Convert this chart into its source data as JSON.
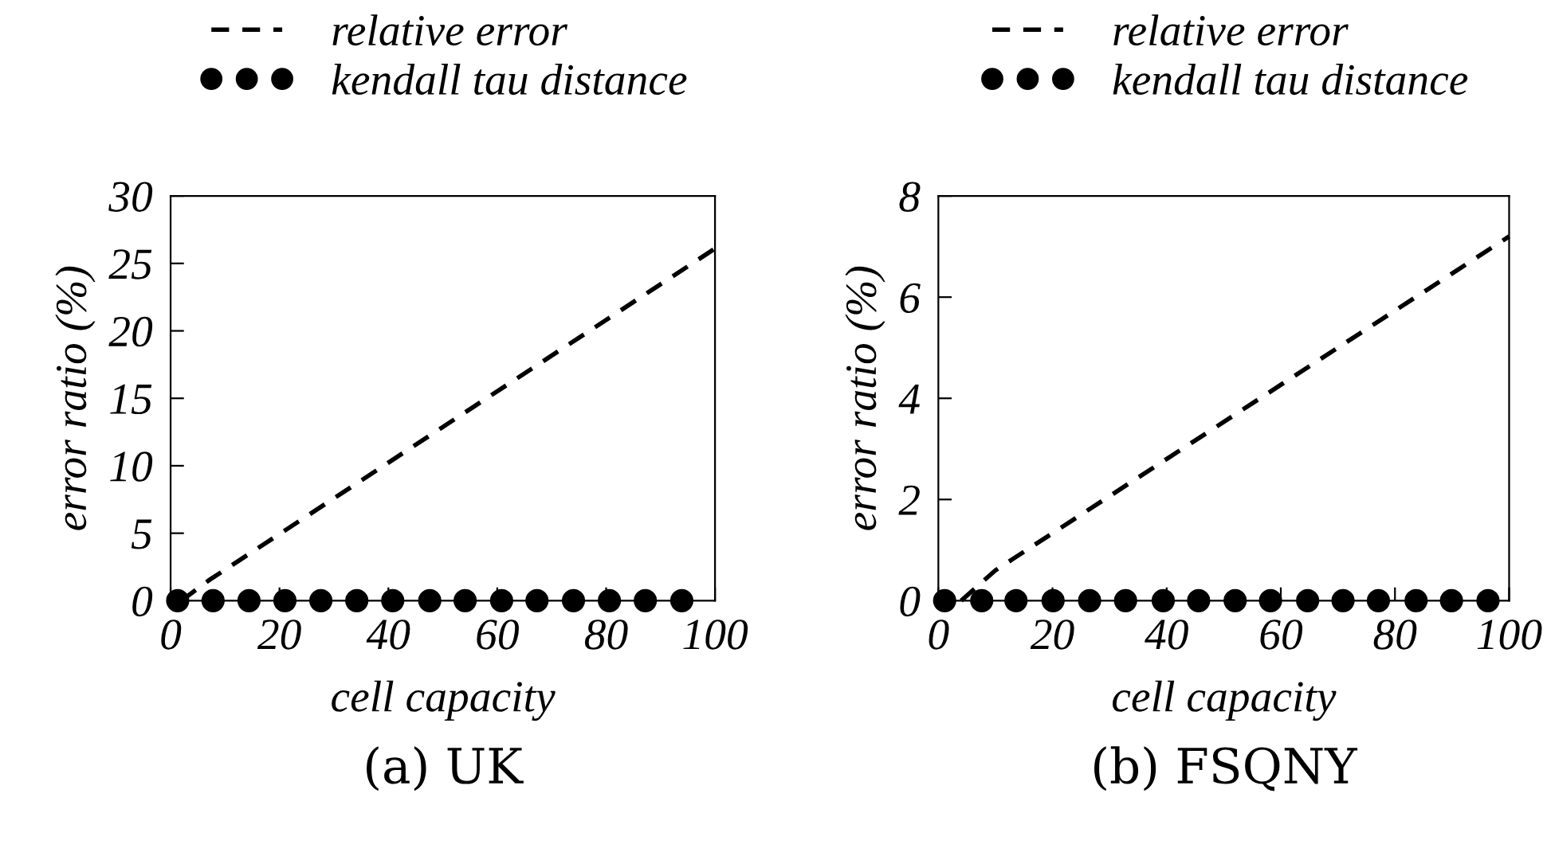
{
  "chart_data": [
    {
      "type": "line",
      "xlabel": "cell capacity",
      "ylabel": "error ratio (%)",
      "annotations": [
        "(a) UK"
      ],
      "xlim": [
        0,
        100
      ],
      "xticks": [
        0,
        20,
        40,
        60,
        80,
        100
      ],
      "ylim": [
        0,
        30
      ],
      "yticks": [
        0,
        5,
        10,
        15,
        20,
        25,
        30
      ],
      "grid": false,
      "legend": "top",
      "series": [
        {
          "name": "relative error",
          "color": "#000000",
          "line_style": "dashed",
          "marker": "none",
          "x": [
            2,
            7,
            100
          ],
          "values": [
            0,
            1.5,
            26.1
          ]
        },
        {
          "name": "kendall tau distance",
          "type": "scatter",
          "color": "#000000",
          "marker": "circle",
          "x": [
            1.3,
            7.8,
            14.4,
            21,
            27.6,
            34.2,
            40.8,
            47.6,
            54.1,
            60.8,
            67.3,
            74,
            80.6,
            87.2,
            93.9
          ],
          "values": [
            0,
            0,
            0,
            0,
            0,
            0,
            0,
            0,
            0,
            0,
            0,
            0,
            0,
            0,
            0
          ]
        }
      ]
    },
    {
      "type": "line",
      "xlabel": "cell capacity",
      "ylabel": "error ratio (%)",
      "annotations": [
        "(b) FSQNY"
      ],
      "xlim": [
        0,
        100
      ],
      "xticks": [
        0,
        20,
        40,
        60,
        80,
        100
      ],
      "ylim": [
        0,
        8
      ],
      "yticks": [
        0,
        2,
        4,
        6,
        8
      ],
      "grid": false,
      "legend": "top",
      "series": [
        {
          "name": "relative error",
          "color": "#000000",
          "line_style": "dashed",
          "marker": "none",
          "x": [
            4,
            10,
            100
          ],
          "values": [
            0,
            0.6,
            7.2
          ]
        },
        {
          "name": "kendall tau distance",
          "type": "scatter",
          "color": "#000000",
          "marker": "circle",
          "x": [
            1.1,
            7.6,
            13.6,
            20.1,
            26.5,
            32.8,
            39.4,
            45.6,
            52,
            58.2,
            64.7,
            70.9,
            77.1,
            83.7,
            89.9,
            96.3
          ],
          "values": [
            0,
            0,
            0,
            0,
            0,
            0,
            0,
            0,
            0,
            0,
            0,
            0,
            0,
            0,
            0,
            0
          ]
        }
      ]
    }
  ]
}
